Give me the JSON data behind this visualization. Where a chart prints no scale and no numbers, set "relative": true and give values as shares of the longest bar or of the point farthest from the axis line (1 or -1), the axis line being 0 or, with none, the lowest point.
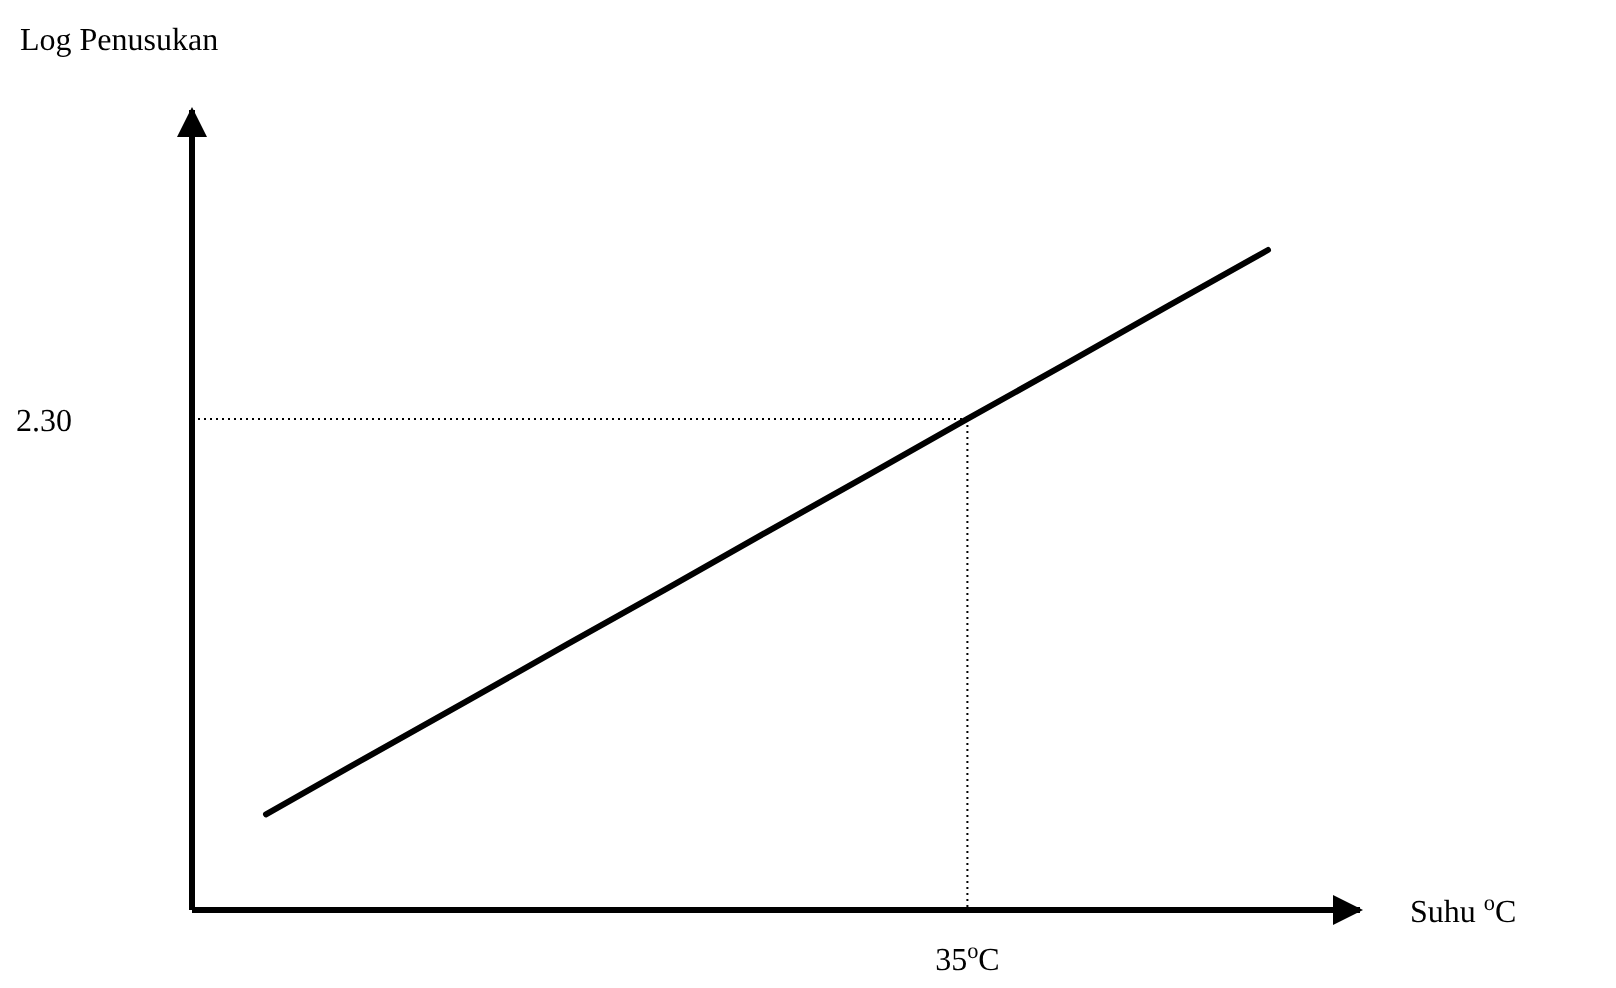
{
  "chart_data": {
    "type": "line",
    "relative": true,
    "xlabel": "Suhu $^{o}$C",
    "categories": [
      null,
      null,
      null,
      null,
      null,
      null,
      null,
      null,
      null,
      null,
      null
    ],
    "series": [
      {
        "color": "#000000",
        "values": [
          0.145,
          0.231,
          0.316,
          0.402,
          0.487,
          0.573,
          0.658,
          0.744,
          0.829,
          0.915,
          1
        ]
      }
    ],
    "ref_lines": [
      {
        "axis": "y",
        "value": 0.744,
        "line_style": "dotted"
      }
    ],
    "annotations": [
      "Log Penusukan",
      "2.30",
      "35$^{o}$C"
    ]
  }
}
